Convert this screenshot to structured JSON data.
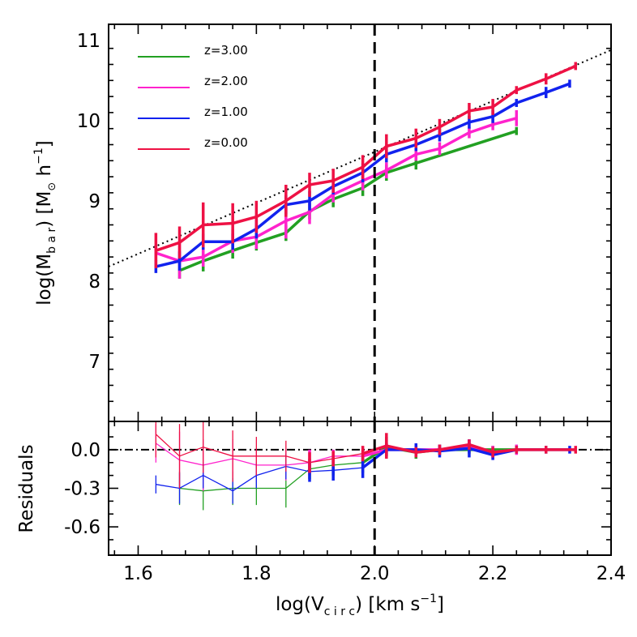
{
  "chart_data": [
    {
      "type": "line",
      "panel": "main",
      "ylabel_parts": {
        "pre": "log(M",
        "sub": "b a r",
        "mid": ")  [M",
        "sun": "⊙",
        "post": " h",
        "sup": "−1",
        "close": "]"
      },
      "xlim": [
        1.55,
        2.4
      ],
      "ylim": [
        6.25,
        11.2
      ],
      "yticks": [
        7,
        8,
        9,
        10,
        11
      ],
      "ytick_labels": [
        "7",
        "8",
        "9",
        "10",
        "11"
      ],
      "vline_x": 2.0,
      "fit_line": {
        "style": "dotted",
        "x": [
          1.55,
          2.4
        ],
        "y": [
          8.18,
          10.88
        ]
      },
      "legend_position": "top-left",
      "series": [
        {
          "name": "z=3.00",
          "color": "#22a022",
          "x": [
            1.67,
            1.71,
            1.76,
            1.8,
            1.85,
            1.89,
            1.93,
            1.98,
            2.02,
            2.07,
            2.24
          ],
          "y": [
            8.13,
            8.25,
            8.38,
            8.48,
            8.6,
            8.87,
            9.02,
            9.16,
            9.35,
            9.47,
            9.87
          ],
          "err": [
            0.1,
            0.13,
            0.1,
            0.1,
            0.1,
            0.1,
            0.1,
            0.1,
            0.1,
            0.08,
            0.0
          ]
        },
        {
          "name": "z=2.00",
          "color": "#ff22cc",
          "x": [
            1.63,
            1.67,
            1.71,
            1.76,
            1.8,
            1.85,
            1.89,
            1.93,
            1.98,
            2.02,
            2.07,
            2.11,
            2.16,
            2.2,
            2.24
          ],
          "y": [
            8.35,
            8.25,
            8.3,
            8.5,
            8.55,
            8.75,
            8.86,
            9.08,
            9.25,
            9.38,
            9.58,
            9.65,
            9.85,
            9.95,
            10.03
          ],
          "err": [
            0.1,
            0.22,
            0.12,
            0.15,
            0.15,
            0.22,
            0.15,
            0.1,
            0.12,
            0.1,
            0.08,
            0.08,
            0.07,
            0.07,
            0.1
          ]
        },
        {
          "name": "z=1.00",
          "color": "#1122ee",
          "x": [
            1.63,
            1.67,
            1.71,
            1.76,
            1.8,
            1.85,
            1.89,
            1.93,
            1.98,
            2.02,
            2.07,
            2.11,
            2.16,
            2.2,
            2.24,
            2.29,
            2.33
          ],
          "y": [
            8.18,
            8.25,
            8.49,
            8.49,
            8.65,
            8.95,
            9.0,
            9.18,
            9.35,
            9.58,
            9.7,
            9.82,
            9.98,
            10.05,
            10.22,
            10.35,
            10.46
          ],
          "err": [
            0.08,
            0.12,
            0.1,
            0.1,
            0.12,
            0.12,
            0.12,
            0.1,
            0.12,
            0.1,
            0.08,
            0.08,
            0.08,
            0.08,
            0.0,
            0.07,
            0.0
          ]
        },
        {
          "name": "z=0.00",
          "color": "#ee1144",
          "x": [
            1.63,
            1.67,
            1.71,
            1.76,
            1.8,
            1.85,
            1.89,
            1.93,
            1.98,
            2.02,
            2.07,
            2.11,
            2.16,
            2.2,
            2.24,
            2.29,
            2.34
          ],
          "y": [
            8.38,
            8.48,
            8.7,
            8.72,
            8.8,
            9.0,
            9.2,
            9.25,
            9.42,
            9.68,
            9.78,
            9.92,
            10.12,
            10.17,
            10.38,
            10.52,
            10.68
          ],
          "err": [
            0.22,
            0.2,
            0.28,
            0.25,
            0.2,
            0.2,
            0.15,
            0.15,
            0.15,
            0.15,
            0.12,
            0.1,
            0.1,
            0.1,
            0.0,
            0.07,
            0.05
          ]
        }
      ]
    },
    {
      "type": "line",
      "panel": "residuals",
      "ylabel": "Residuals",
      "xlabel_parts": {
        "pre": "log(V",
        "sub": "c i r c",
        "mid": ")  [km s",
        "sup": "−1",
        "close": "]"
      },
      "xlim": [
        1.55,
        2.4
      ],
      "ylim": [
        -0.82,
        0.22
      ],
      "xticks": [
        1.6,
        1.8,
        2.0,
        2.2,
        2.4
      ],
      "xtick_labels": [
        "1.6",
        "1.8",
        "2.0",
        "2.2",
        "2.4"
      ],
      "yticks": [
        0.0,
        -0.3,
        -0.6
      ],
      "ytick_labels": [
        "0.0",
        "-0.3",
        "-0.6"
      ],
      "zero_line_style": "dash-dot",
      "vline_x": 2.0,
      "series": [
        {
          "name": "z=3.00",
          "color": "#22a022",
          "x": [
            1.67,
            1.71,
            1.76,
            1.8,
            1.85,
            1.89,
            1.93,
            1.98,
            2.02,
            2.07,
            2.11,
            2.16,
            2.2,
            2.24
          ],
          "y": [
            -0.3,
            -0.32,
            -0.3,
            -0.3,
            -0.3,
            -0.15,
            -0.12,
            -0.1,
            0.02,
            -0.02,
            0.0,
            0.0,
            0.0,
            0.0
          ],
          "err": [
            0.13,
            0.15,
            0.13,
            0.13,
            0.15,
            0.08,
            0.08,
            0.08,
            0.08,
            0.05,
            0.0,
            0.0,
            0.0,
            0.0
          ]
        },
        {
          "name": "z=2.00",
          "color": "#ff22cc",
          "x": [
            1.63,
            1.67,
            1.71,
            1.76,
            1.8,
            1.85,
            1.89,
            1.93,
            1.98,
            2.02,
            2.07,
            2.11,
            2.16,
            2.2,
            2.24
          ],
          "y": [
            0.05,
            -0.08,
            -0.12,
            -0.07,
            -0.12,
            -0.12,
            -0.1,
            -0.05,
            -0.05,
            0.0,
            0.0,
            0.0,
            0.03,
            -0.02,
            0.0
          ],
          "err": [
            0.15,
            0.22,
            0.2,
            0.15,
            0.13,
            0.12,
            0.1,
            0.05,
            0.05,
            0.05,
            0.04,
            0.04,
            0.05,
            0.05,
            0.04
          ]
        },
        {
          "name": "z=1.00",
          "color": "#1122ee",
          "x": [
            1.63,
            1.67,
            1.71,
            1.76,
            1.8,
            1.85,
            1.89,
            1.93,
            1.98,
            2.02,
            2.07,
            2.11,
            2.16,
            2.2,
            2.24,
            2.29,
            2.33
          ],
          "y": [
            -0.27,
            -0.3,
            -0.2,
            -0.32,
            -0.2,
            -0.13,
            -0.17,
            -0.16,
            -0.14,
            0.0,
            0.0,
            -0.01,
            0.01,
            -0.04,
            0.0,
            0.0,
            0.0
          ],
          "err": [
            0.07,
            0.12,
            0.1,
            0.1,
            0.1,
            0.1,
            0.08,
            0.08,
            0.08,
            0.05,
            0.05,
            0.05,
            0.07,
            0.04,
            0.03,
            0.03,
            0.03
          ]
        },
        {
          "name": "z=0.00",
          "color": "#ee1144",
          "x": [
            1.63,
            1.67,
            1.71,
            1.76,
            1.8,
            1.85,
            1.89,
            1.93,
            1.98,
            2.02,
            2.07,
            2.11,
            2.16,
            2.2,
            2.24,
            2.29,
            2.34
          ],
          "y": [
            0.12,
            -0.05,
            0.02,
            -0.05,
            -0.05,
            -0.05,
            -0.1,
            -0.07,
            -0.03,
            0.03,
            -0.02,
            0.0,
            0.04,
            -0.02,
            0.0,
            0.0,
            0.0
          ],
          "err": [
            0.18,
            0.25,
            0.2,
            0.2,
            0.15,
            0.12,
            0.08,
            0.06,
            0.06,
            0.1,
            0.04,
            0.04,
            0.04,
            0.04,
            0.03,
            0.03,
            0.03
          ]
        }
      ]
    }
  ]
}
